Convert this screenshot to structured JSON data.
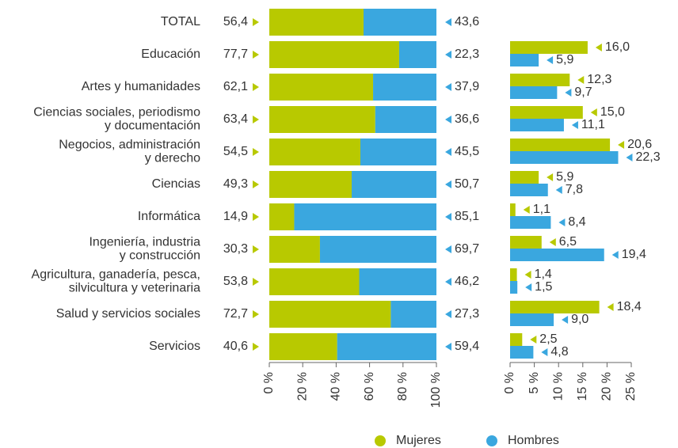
{
  "chart_data": [
    {
      "type": "stacked_bar_100",
      "categories": [
        "TOTAL",
        "Educación",
        "Artes y humanidades",
        "Ciencias sociales, periodismo\ny documentación",
        "Negocios, administración\ny derecho",
        "Ciencias",
        "Informática",
        "Ingeniería, industria\ny construcción",
        "Agricultura, ganadería, pesca,\nsilvicultura y veterinaria",
        "Salud y servicios sociales",
        "Servicios"
      ],
      "series": [
        {
          "name": "Mujeres",
          "color": "#b8c900",
          "values": [
            56.4,
            77.7,
            62.1,
            63.4,
            54.5,
            49.3,
            14.9,
            30.3,
            53.8,
            72.7,
            40.6
          ],
          "value_labels": [
            "56,4",
            "77,7",
            "62,1",
            "63,4",
            "54,5",
            "49,3",
            "14,9",
            "30,3",
            "53,8",
            "72,7",
            "40,6"
          ]
        },
        {
          "name": "Hombres",
          "color": "#3aa7df",
          "values": [
            43.6,
            22.3,
            37.9,
            36.6,
            45.5,
            50.7,
            85.1,
            69.7,
            46.2,
            27.3,
            59.4
          ],
          "value_labels": [
            "43,6",
            "22,3",
            "37,9",
            "36,6",
            "45,5",
            "50,7",
            "85,1",
            "69,7",
            "46,2",
            "27,3",
            "59,4"
          ]
        }
      ],
      "xlim": [
        0,
        100
      ],
      "xticks": [
        {
          "value": 0,
          "label": "0 %"
        },
        {
          "value": 20,
          "label": "20 %"
        },
        {
          "value": 40,
          "label": "40 %"
        },
        {
          "value": 60,
          "label": "60 %"
        },
        {
          "value": 80,
          "label": "80 %"
        },
        {
          "value": 100,
          "label": "100 %"
        }
      ],
      "legend": "bottom"
    },
    {
      "type": "grouped_bar",
      "series": [
        {
          "color": "#b8c900",
          "values": [
            null,
            16.0,
            12.3,
            15.0,
            20.6,
            5.9,
            1.1,
            6.5,
            1.4,
            18.4,
            2.5
          ],
          "value_labels": [
            null,
            "16,0",
            "12,3",
            "15,0",
            "20,6",
            "5,9",
            "1,1",
            "6,5",
            "1,4",
            "18,4",
            "2,5"
          ]
        },
        {
          "color": "#3aa7df",
          "values": [
            null,
            5.9,
            9.7,
            11.1,
            22.3,
            7.8,
            8.4,
            19.4,
            1.5,
            9.0,
            4.8
          ],
          "value_labels": [
            null,
            "5,9",
            "9,7",
            "11,1",
            "22,3",
            "7,8",
            "8,4",
            "19,4",
            "1,5",
            "9,0",
            "4,8"
          ]
        }
      ],
      "xlim": [
        0,
        25
      ],
      "xticks": [
        {
          "value": 0,
          "label": "0 %"
        },
        {
          "value": 5,
          "label": "5 %"
        },
        {
          "value": 10,
          "label": "10 %"
        },
        {
          "value": 15,
          "label": "15 %"
        },
        {
          "value": 20,
          "label": "20 %"
        },
        {
          "value": 25,
          "label": "25 %"
        }
      ]
    }
  ]
}
